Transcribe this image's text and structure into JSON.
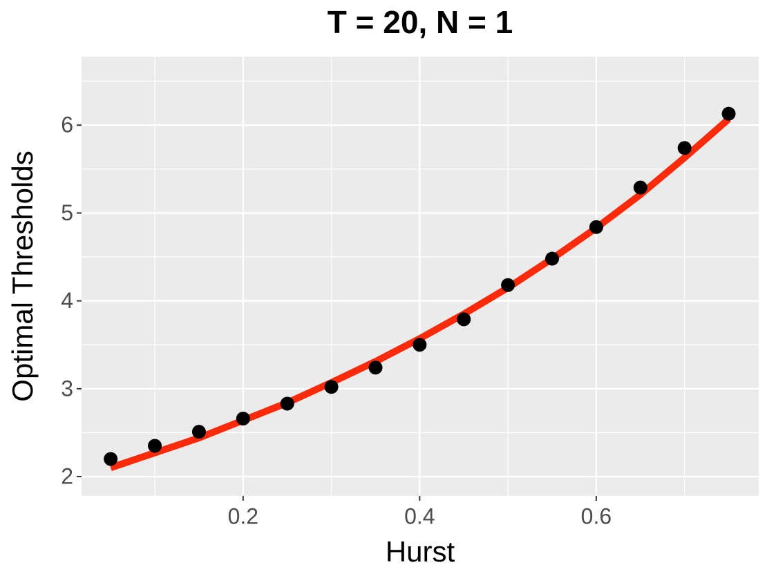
{
  "chart_data": {
    "type": "scatter",
    "title": "T = 20, N = 1",
    "x_label": "Hurst",
    "y_label": "Optimal Thresholds",
    "x": [
      0.05,
      0.1,
      0.15,
      0.2,
      0.25,
      0.3,
      0.35,
      0.4,
      0.45,
      0.5,
      0.55,
      0.6,
      0.65,
      0.7,
      0.75
    ],
    "series": [
      {
        "type": "line",
        "color": "#fa2a0a",
        "values": [
          2.1,
          2.27,
          2.44,
          2.64,
          2.84,
          3.07,
          3.31,
          3.57,
          3.85,
          4.15,
          4.48,
          4.83,
          5.21,
          5.63,
          6.07
        ]
      },
      {
        "type": "scatter",
        "color": "#000000",
        "values": [
          2.2,
          2.35,
          2.51,
          2.66,
          2.83,
          3.02,
          3.24,
          3.5,
          3.79,
          4.18,
          4.48,
          4.84,
          5.29,
          5.74,
          6.13
        ]
      }
    ],
    "xlim": [
      0.017,
      0.784
    ],
    "ylim": [
      1.78,
      6.78
    ],
    "xticks": [
      0.2,
      0.4,
      0.6
    ],
    "yticks": [
      2,
      3,
      4,
      5,
      6
    ],
    "grid": true,
    "panel_color": "#ebebeb"
  }
}
